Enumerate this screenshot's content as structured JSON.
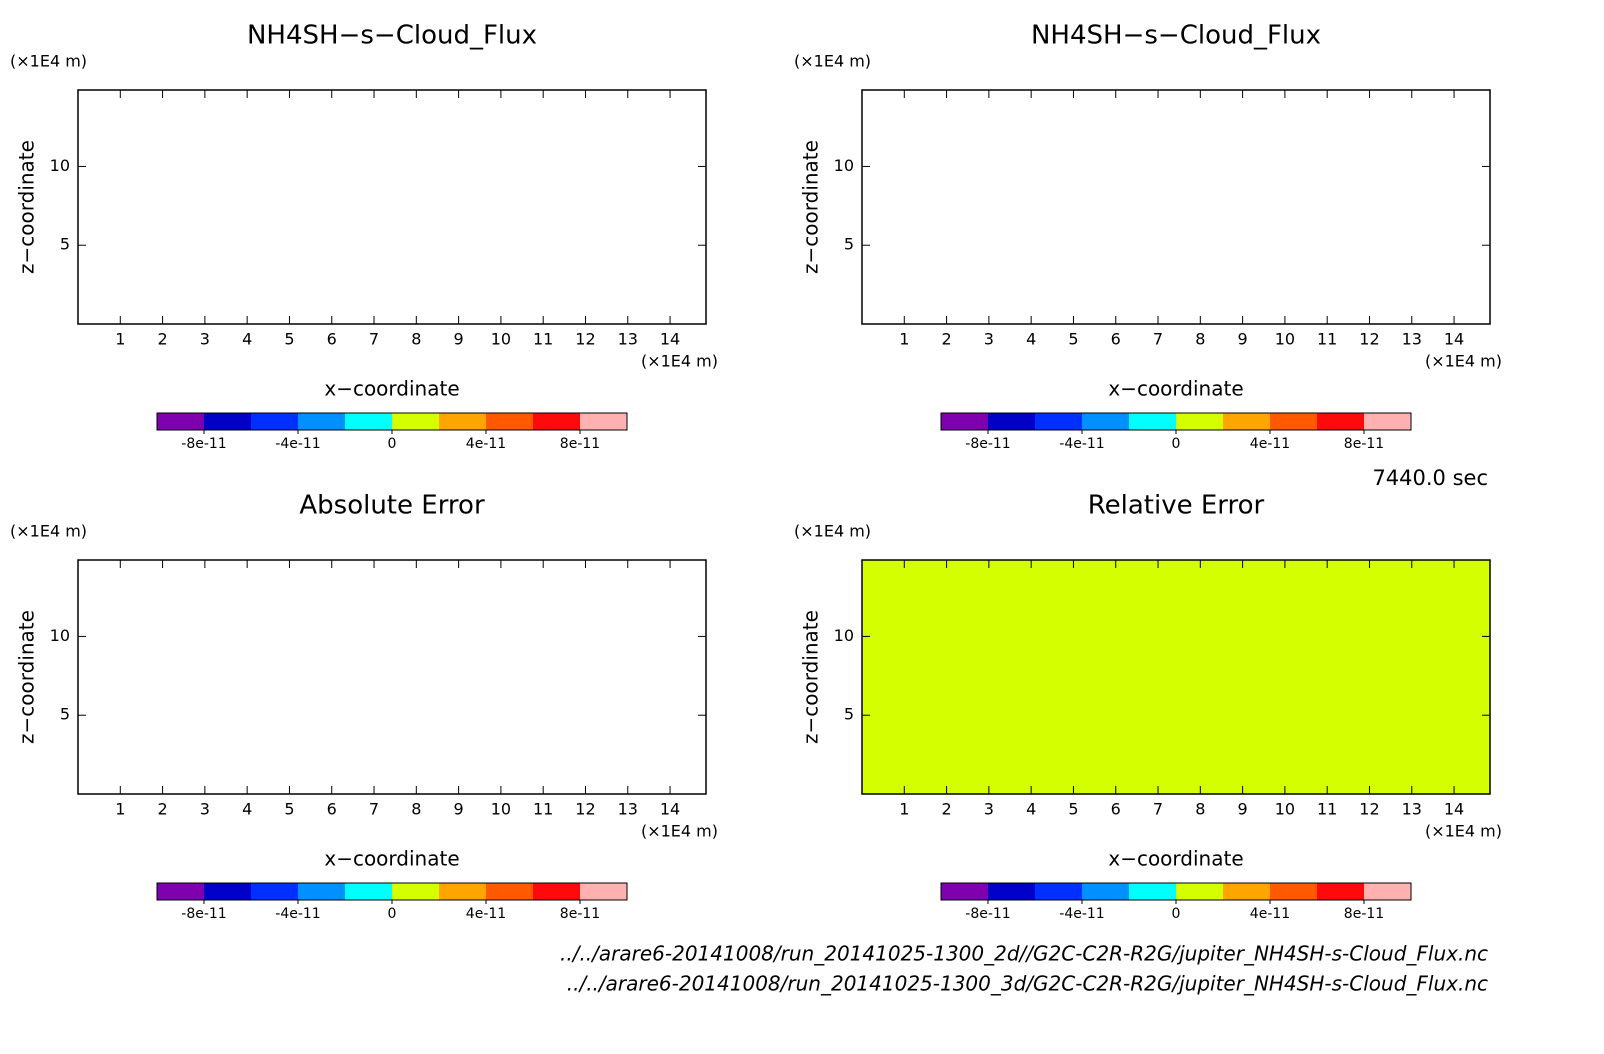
{
  "chart_data": [
    {
      "type": "contour",
      "title": "NH4SH−s−Cloud_Flux",
      "xlabel": "x−coordinate",
      "ylabel": "z−coordinate",
      "x_unit": "(×1E4 m)",
      "y_unit": "(×1E4 m)",
      "xlim": [
        0,
        14.85
      ],
      "ylim": [
        0,
        14.85
      ],
      "xticks": [
        1,
        2,
        3,
        4,
        5,
        6,
        7,
        8,
        9,
        10,
        11,
        12,
        13,
        14
      ],
      "yticks": [
        5,
        10
      ],
      "colorbar": {
        "lim": [
          -1e-10,
          1e-10
        ],
        "ticks": [
          -8e-11,
          -4e-11,
          0,
          4e-11,
          8e-11
        ],
        "colors": [
          "#7f00af",
          "#0000c8",
          "#0030ff",
          "#0090ff",
          "#00ffff",
          "#d4ff00",
          "#ffa500",
          "#ff5a00",
          "#ff0a0a",
          "#ffb0b0"
        ]
      }
    },
    {
      "type": "contour",
      "title": "NH4SH−s−Cloud_Flux",
      "xlabel": "x−coordinate",
      "ylabel": "z−coordinate",
      "x_unit": "(×1E4 m)",
      "y_unit": "(×1E4 m)",
      "xlim": [
        0,
        14.85
      ],
      "ylim": [
        0,
        14.85
      ],
      "xticks": [
        1,
        2,
        3,
        4,
        5,
        6,
        7,
        8,
        9,
        10,
        11,
        12,
        13,
        14
      ],
      "yticks": [
        5,
        10
      ],
      "colorbar": {
        "lim": [
          -1e-10,
          1e-10
        ],
        "ticks": [
          -8e-11,
          -4e-11,
          0,
          4e-11,
          8e-11
        ],
        "colors": [
          "#7f00af",
          "#0000c8",
          "#0030ff",
          "#0090ff",
          "#00ffff",
          "#d4ff00",
          "#ffa500",
          "#ff5a00",
          "#ff0a0a",
          "#ffb0b0"
        ]
      }
    },
    {
      "type": "contour",
      "title": "Absolute Error",
      "xlabel": "x−coordinate",
      "ylabel": "z−coordinate",
      "x_unit": "(×1E4 m)",
      "y_unit": "(×1E4 m)",
      "xlim": [
        0,
        14.85
      ],
      "ylim": [
        0,
        14.85
      ],
      "xticks": [
        1,
        2,
        3,
        4,
        5,
        6,
        7,
        8,
        9,
        10,
        11,
        12,
        13,
        14
      ],
      "yticks": [
        5,
        10
      ],
      "colorbar": {
        "lim": [
          -1e-10,
          1e-10
        ],
        "ticks": [
          -8e-11,
          -4e-11,
          0,
          4e-11,
          8e-11
        ],
        "colors": [
          "#7f00af",
          "#0000c8",
          "#0030ff",
          "#0090ff",
          "#00ffff",
          "#d4ff00",
          "#ffa500",
          "#ff5a00",
          "#ff0a0a",
          "#ffb0b0"
        ]
      }
    },
    {
      "type": "contour",
      "title": "Relative Error",
      "xlabel": "x−coordinate",
      "ylabel": "z−coordinate",
      "x_unit": "(×1E4 m)",
      "y_unit": "(×1E4 m)",
      "xlim": [
        0,
        14.85
      ],
      "ylim": [
        0,
        14.85
      ],
      "xticks": [
        1,
        2,
        3,
        4,
        5,
        6,
        7,
        8,
        9,
        10,
        11,
        12,
        13,
        14
      ],
      "yticks": [
        5,
        10
      ],
      "fill_color": "#d4ff00",
      "colorbar": {
        "lim": [
          -1e-10,
          1e-10
        ],
        "ticks": [
          -8e-11,
          -4e-11,
          0,
          4e-11,
          8e-11
        ],
        "colors": [
          "#7f00af",
          "#0000c8",
          "#0030ff",
          "#0090ff",
          "#00ffff",
          "#d4ff00",
          "#ffa500",
          "#ff5a00",
          "#ff0a0a",
          "#ffb0b0"
        ]
      }
    }
  ],
  "time_label": "7440.0 sec",
  "footer": [
    "../../arare6-20141008/run_20141025-1300_2d//G2C-C2R-R2G/jupiter_NH4SH-s-Cloud_Flux.nc",
    "../../arare6-20141008/run_20141025-1300_3d/G2C-C2R-R2G/jupiter_NH4SH-s-Cloud_Flux.nc"
  ]
}
